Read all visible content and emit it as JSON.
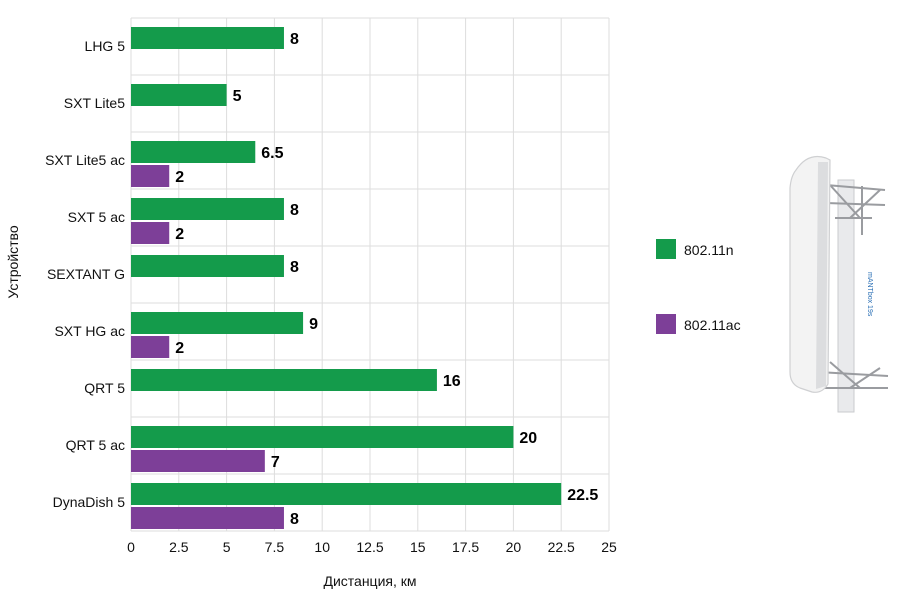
{
  "chart_data": {
    "type": "bar",
    "orientation": "horizontal",
    "categories": [
      "LHG 5",
      "SXT Lite5",
      "SXT Lite5 ac",
      "SXT 5 ac",
      "SEXTANT G",
      "SXT HG ac",
      "QRT 5",
      "QRT 5 ac",
      "DynaDish 5"
    ],
    "series": [
      {
        "name": "802.11n",
        "color": "#149b4b",
        "values": [
          8,
          5,
          6.5,
          8,
          8,
          9,
          16,
          20,
          22.5
        ]
      },
      {
        "name": "802.11ac",
        "color": "#7d3f98",
        "values": [
          null,
          null,
          2,
          2,
          null,
          2,
          null,
          7,
          8
        ]
      }
    ],
    "xlabel": "Дистанция, км",
    "ylabel": "Устройство",
    "xlim": [
      0,
      25
    ],
    "xticks": [
      0,
      2.5,
      5,
      7.5,
      10,
      12.5,
      15,
      17.5,
      20,
      22.5,
      25
    ],
    "grid": true,
    "legend_position": "right"
  },
  "product_image": {
    "caption": "mANTbox 19s"
  }
}
